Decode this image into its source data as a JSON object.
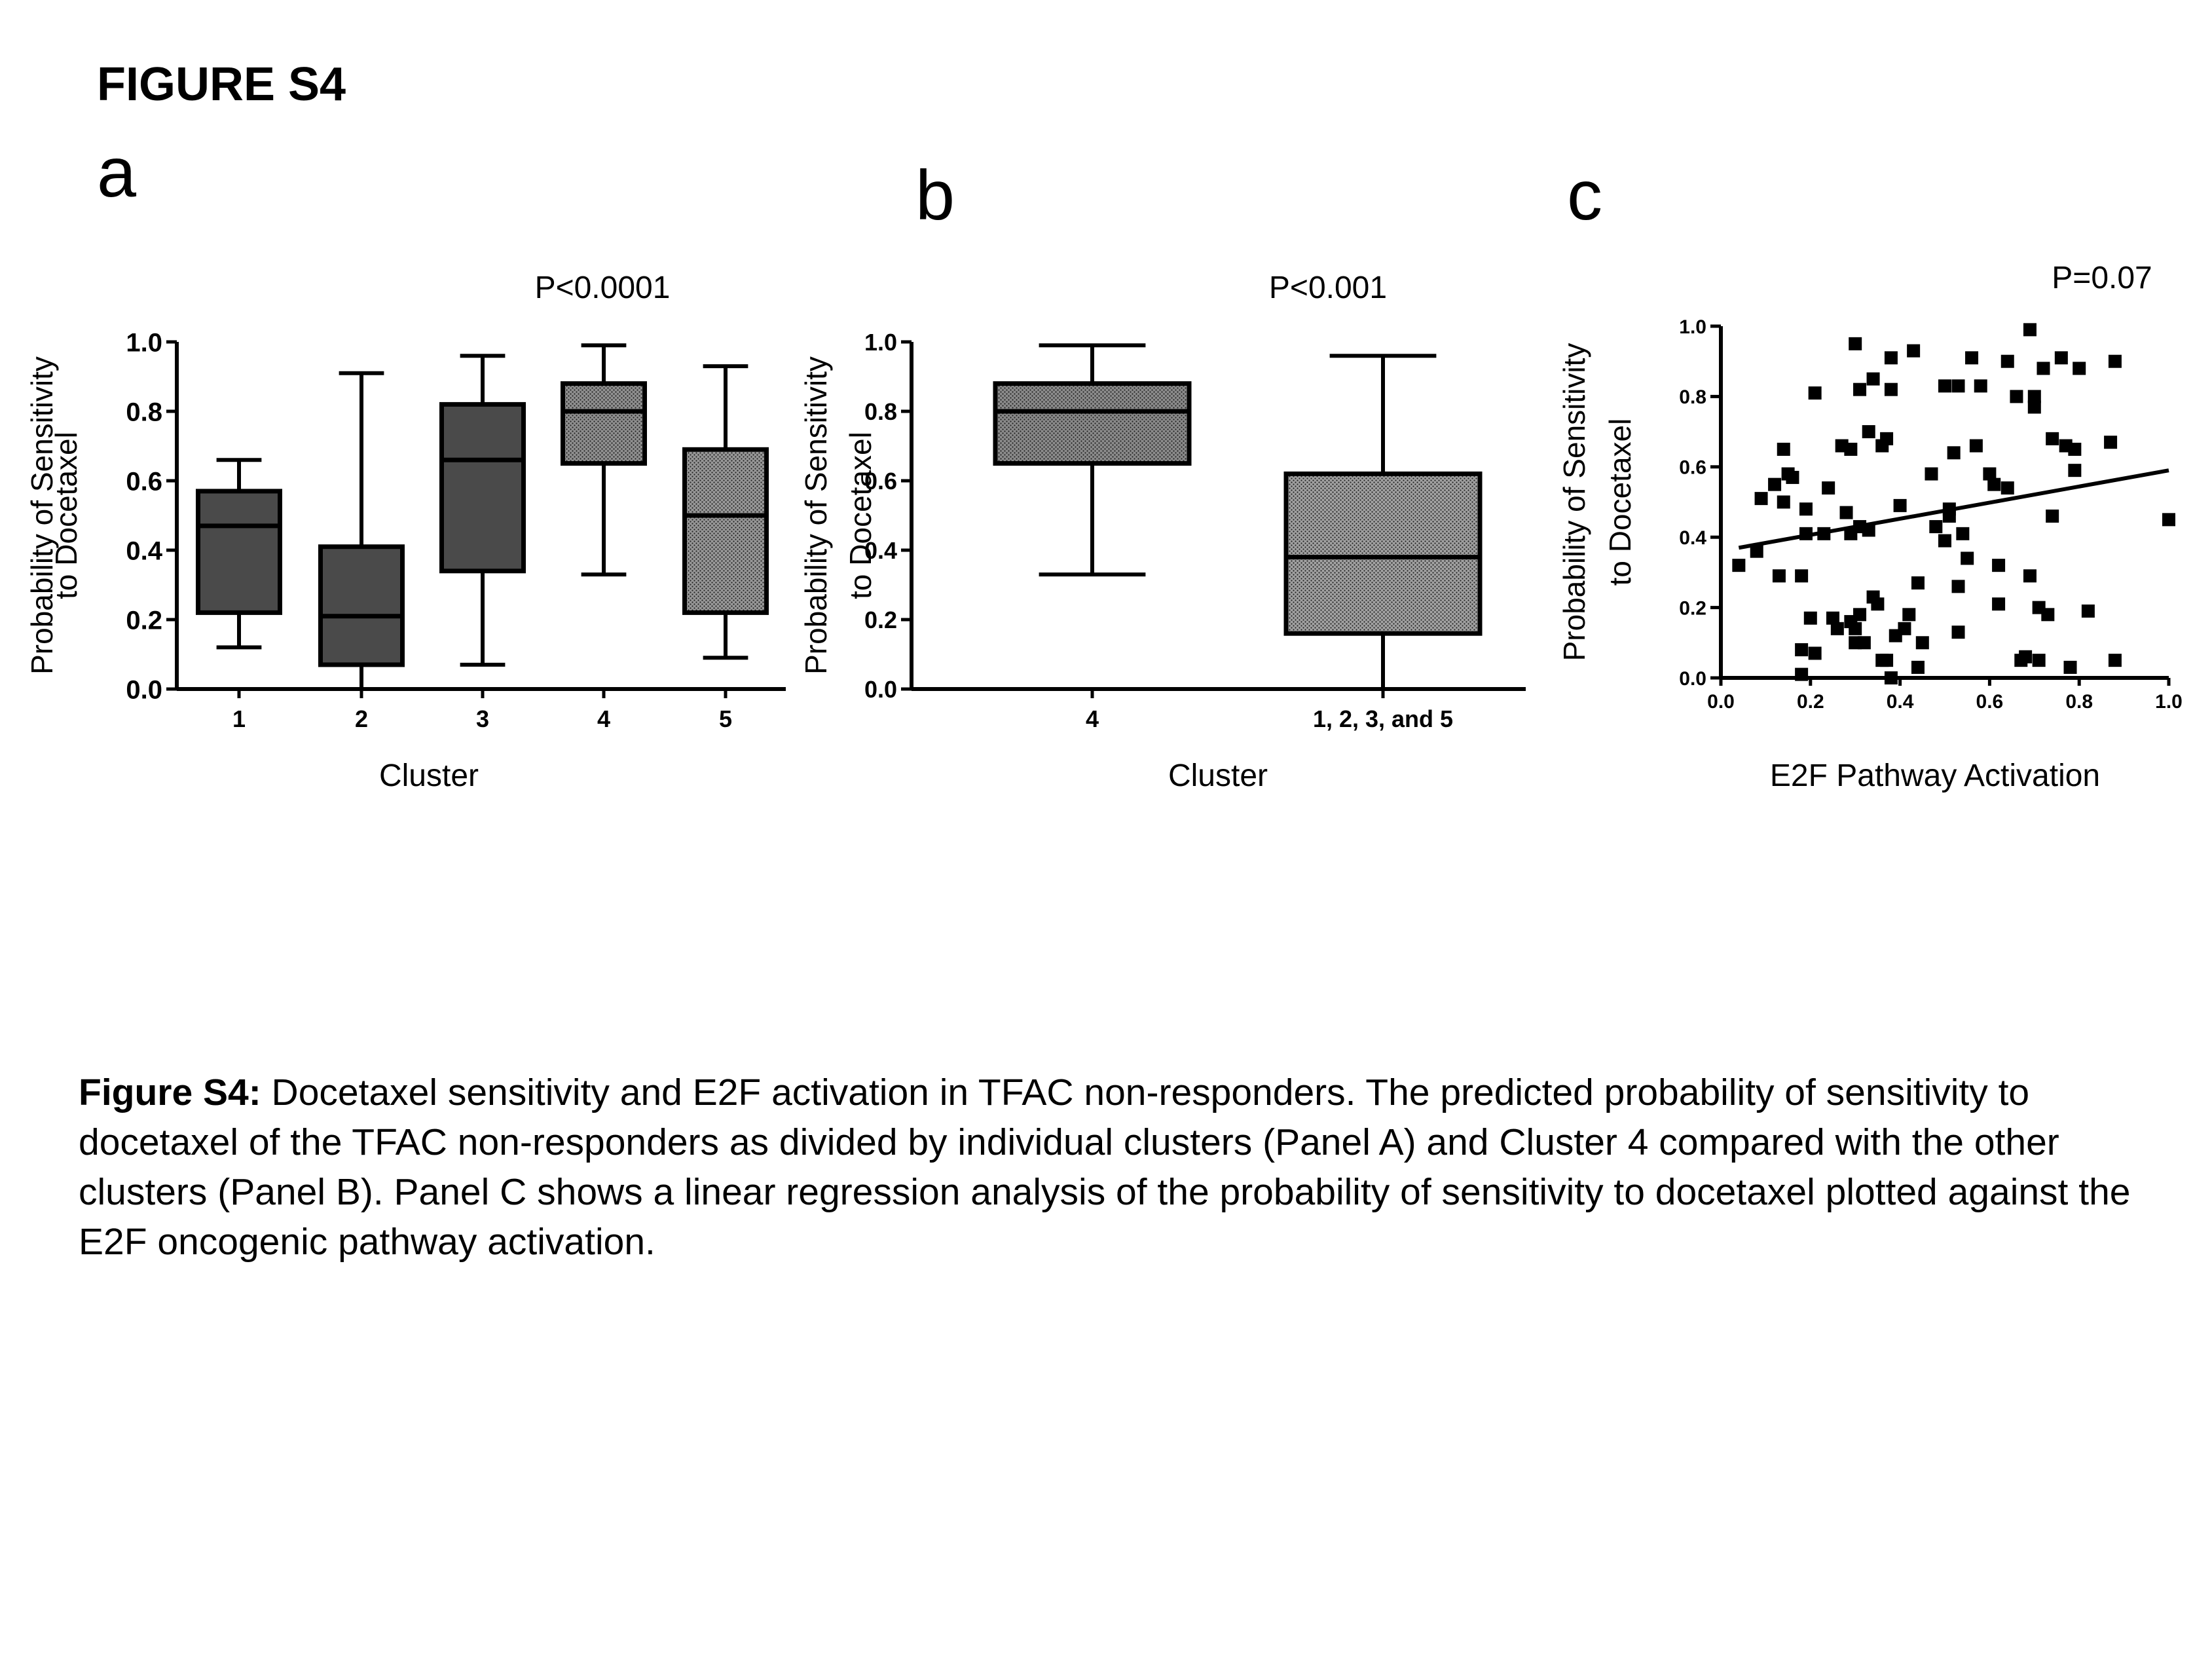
{
  "figure": {
    "title": "FIGURE S4",
    "caption_label": "Figure S4:",
    "caption_text": " Docetaxel sensitivity and E2F activation in TFAC non-responders. The predicted probability of sensitivity to docetaxel of the TFAC non-responders as divided by individual clusters (Panel A) and Cluster 4 compared with the other clusters (Panel B). Panel C shows a linear regression analysis of the probability of sensitivity to docetaxel plotted against the E2F oncogenic pathway activation."
  },
  "chart_data": [
    {
      "type": "box",
      "panel_letter": "a",
      "annotation": "P<0.0001",
      "xlabel": "Cluster",
      "ylabel": [
        "Probability of Sensitivity",
        "to Docetaxel"
      ],
      "ylim": [
        0,
        1
      ],
      "yticks": [
        "0.0",
        "0.2",
        "0.4",
        "0.6",
        "0.8",
        "1.0"
      ],
      "categories": [
        "1",
        "2",
        "3",
        "4",
        "5"
      ],
      "boxes": [
        {
          "min": 0.12,
          "q1": 0.22,
          "median": 0.47,
          "q3": 0.57,
          "max": 0.66,
          "fill": "#4a4a4a"
        },
        {
          "min": 0.0,
          "q1": 0.07,
          "median": 0.21,
          "q3": 0.41,
          "max": 0.91,
          "fill": "#4a4a4a"
        },
        {
          "min": 0.07,
          "q1": 0.34,
          "median": 0.66,
          "q3": 0.82,
          "max": 0.96,
          "fill": "#4a4a4a"
        },
        {
          "min": 0.33,
          "q1": 0.65,
          "median": 0.8,
          "q3": 0.88,
          "max": 0.99,
          "fill": "#8f8f8f"
        },
        {
          "min": 0.09,
          "q1": 0.22,
          "median": 0.5,
          "q3": 0.69,
          "max": 0.93,
          "fill": "#979797"
        }
      ]
    },
    {
      "type": "box",
      "panel_letter": "b",
      "annotation": "P<0.001",
      "xlabel": "Cluster",
      "ylabel": [
        "Probability of Sensitivity",
        "to Docetaxel"
      ],
      "ylim": [
        0,
        1
      ],
      "yticks": [
        "0.0",
        "0.2",
        "0.4",
        "0.6",
        "0.8",
        "1.0"
      ],
      "categories": [
        "4",
        "1, 2, 3, and 5"
      ],
      "boxes": [
        {
          "min": 0.33,
          "q1": 0.65,
          "median": 0.8,
          "q3": 0.88,
          "max": 0.99,
          "fill": "#8a8a8a"
        },
        {
          "min": 0.0,
          "q1": 0.16,
          "median": 0.38,
          "q3": 0.62,
          "max": 0.96,
          "fill": "#a0a0a0"
        }
      ]
    },
    {
      "type": "scatter",
      "panel_letter": "c",
      "annotation": "P=0.07",
      "xlabel": "E2F Pathway Activation",
      "ylabel": [
        "Probability of Sensitivity",
        "to Docetaxel"
      ],
      "xlim": [
        0,
        1
      ],
      "ylim": [
        0,
        1
      ],
      "xticks": [
        "0.0",
        "0.2",
        "0.4",
        "0.6",
        "0.8",
        "1.0"
      ],
      "yticks": [
        "0.0",
        "0.2",
        "0.4",
        "0.6",
        "0.8",
        "1.0"
      ],
      "regression": {
        "x": [
          0.04,
          1.0
        ],
        "y": [
          0.37,
          0.59
        ]
      },
      "points": [
        [
          0.04,
          0.32
        ],
        [
          0.08,
          0.36
        ],
        [
          0.09,
          0.51
        ],
        [
          0.12,
          0.55
        ],
        [
          0.13,
          0.29
        ],
        [
          0.14,
          0.65
        ],
        [
          0.14,
          0.5
        ],
        [
          0.15,
          0.58
        ],
        [
          0.16,
          0.57
        ],
        [
          0.18,
          0.08
        ],
        [
          0.18,
          0.29
        ],
        [
          0.18,
          0.01
        ],
        [
          0.19,
          0.48
        ],
        [
          0.19,
          0.41
        ],
        [
          0.2,
          0.17
        ],
        [
          0.21,
          0.81
        ],
        [
          0.21,
          0.07
        ],
        [
          0.23,
          0.41
        ],
        [
          0.24,
          0.54
        ],
        [
          0.25,
          0.17
        ],
        [
          0.26,
          0.14
        ],
        [
          0.27,
          0.66
        ],
        [
          0.28,
          0.47
        ],
        [
          0.29,
          0.16
        ],
        [
          0.29,
          0.41
        ],
        [
          0.29,
          0.65
        ],
        [
          0.3,
          0.95
        ],
        [
          0.3,
          0.14
        ],
        [
          0.3,
          0.1
        ],
        [
          0.31,
          0.43
        ],
        [
          0.31,
          0.18
        ],
        [
          0.31,
          0.82
        ],
        [
          0.32,
          0.1
        ],
        [
          0.33,
          0.42
        ],
        [
          0.33,
          0.7
        ],
        [
          0.34,
          0.85
        ],
        [
          0.34,
          0.23
        ],
        [
          0.35,
          0.21
        ],
        [
          0.36,
          0.66
        ],
        [
          0.36,
          0.05
        ],
        [
          0.37,
          0.05
        ],
        [
          0.37,
          0.68
        ],
        [
          0.38,
          0.82
        ],
        [
          0.38,
          0.91
        ],
        [
          0.38,
          0.0
        ],
        [
          0.39,
          0.12
        ],
        [
          0.4,
          0.49
        ],
        [
          0.41,
          0.14
        ],
        [
          0.42,
          0.18
        ],
        [
          0.43,
          0.93
        ],
        [
          0.44,
          0.27
        ],
        [
          0.44,
          0.03
        ],
        [
          0.45,
          0.1
        ],
        [
          0.47,
          0.58
        ],
        [
          0.48,
          0.43
        ],
        [
          0.5,
          0.39
        ],
        [
          0.5,
          0.83
        ],
        [
          0.51,
          0.48
        ],
        [
          0.51,
          0.46
        ],
        [
          0.52,
          0.64
        ],
        [
          0.53,
          0.83
        ],
        [
          0.53,
          0.26
        ],
        [
          0.53,
          0.13
        ],
        [
          0.54,
          0.41
        ],
        [
          0.55,
          0.34
        ],
        [
          0.56,
          0.91
        ],
        [
          0.57,
          0.66
        ],
        [
          0.58,
          0.83
        ],
        [
          0.6,
          0.58
        ],
        [
          0.61,
          0.55
        ],
        [
          0.62,
          0.32
        ],
        [
          0.62,
          0.21
        ],
        [
          0.64,
          0.54
        ],
        [
          0.64,
          0.9
        ],
        [
          0.66,
          0.8
        ],
        [
          0.67,
          0.05
        ],
        [
          0.68,
          0.06
        ],
        [
          0.69,
          0.99
        ],
        [
          0.69,
          0.29
        ],
        [
          0.7,
          0.8
        ],
        [
          0.7,
          0.77
        ],
        [
          0.71,
          0.2
        ],
        [
          0.71,
          0.05
        ],
        [
          0.72,
          0.88
        ],
        [
          0.73,
          0.18
        ],
        [
          0.74,
          0.46
        ],
        [
          0.74,
          0.68
        ],
        [
          0.76,
          0.91
        ],
        [
          0.77,
          0.66
        ],
        [
          0.78,
          0.03
        ],
        [
          0.79,
          0.59
        ],
        [
          0.79,
          0.65
        ],
        [
          0.8,
          0.88
        ],
        [
          0.82,
          0.19
        ],
        [
          0.87,
          0.67
        ],
        [
          0.88,
          0.05
        ],
        [
          0.88,
          0.9
        ],
        [
          1.0,
          0.45
        ]
      ]
    }
  ]
}
